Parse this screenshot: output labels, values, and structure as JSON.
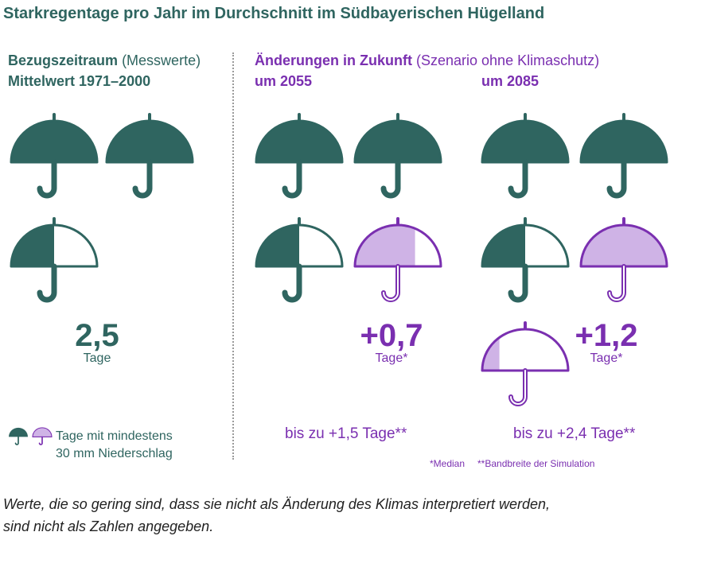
{
  "title": "Starkregentage pro Jahr im Durchschnitt im Südbayerischen Hügelland",
  "reference": {
    "heading_bold": "Bezugszeitraum",
    "heading_normal": "(Messwerte)",
    "period": "Mittelwert 1971–2000"
  },
  "future": {
    "heading_bold": "Änderungen in Zukunft",
    "heading_normal": "(Szenario ohne Klimaschutz)",
    "label_2055": "um 2055",
    "label_2085": "um 2085"
  },
  "values": {
    "ref_value": "2,5",
    "ref_unit": "Tage",
    "c2055_value": "+0,7",
    "c2055_unit": "Tage*",
    "c2055_range": "bis zu +1,5 Tage**",
    "c2085_value": "+1,2",
    "c2085_unit": "Tage*",
    "c2085_range": "bis zu +2,4 Tage**"
  },
  "legend": {
    "line1": "Tage mit mindestens",
    "line2": "30 mm Niederschlag"
  },
  "notes": {
    "median": "*Median",
    "range": "**Bandbreite der Simulation"
  },
  "footnote": {
    "line1": "Werte, die so gering sind, dass sie nicht als Änderung des Klimas interpretiert werden,",
    "line2": "sind nicht als Zahlen angegeben."
  },
  "colors": {
    "teal": "#2f6560",
    "purple": "#7a2fb0",
    "lavender": "#cfb3e6"
  },
  "chart_data": {
    "type": "pictogram",
    "unit": "Tage",
    "icon": "umbrella-icon",
    "series": [
      {
        "period": "Mittelwert 1971–2000",
        "base": 2.5
      },
      {
        "period": "um 2055",
        "base": 2.5,
        "median_change": 0.7,
        "max_change": 1.5
      },
      {
        "period": "um 2085",
        "base": 2.5,
        "median_change": 1.2,
        "max_change": 2.4
      }
    ]
  }
}
